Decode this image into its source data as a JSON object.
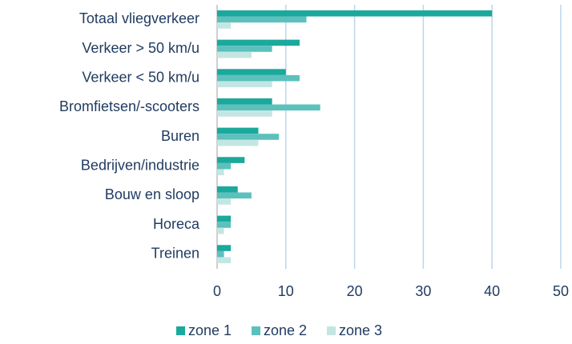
{
  "chart_data": {
    "type": "hbar",
    "categories": [
      "Totaal vliegverkeer",
      "Verkeer > 50 km/u",
      "Verkeer < 50 km/u",
      "Bromfietsen/-scooters",
      "Buren",
      "Bedrijven/industrie",
      "Bouw en sloop",
      "Horeca",
      "Treinen"
    ],
    "series": [
      {
        "name": "zone 1",
        "color": "#1aa99c",
        "values": [
          40,
          12,
          10,
          8,
          6,
          4,
          3,
          2,
          2
        ]
      },
      {
        "name": "zone 2",
        "color": "#5cc1bd",
        "values": [
          13,
          8,
          12,
          15,
          9,
          2,
          5,
          2,
          1
        ]
      },
      {
        "name": "zone 3",
        "color": "#c3e6e2",
        "values": [
          2,
          5,
          8,
          8,
          6,
          1,
          2,
          1,
          2
        ]
      }
    ],
    "xlim": [
      0,
      50
    ],
    "xticks": [
      0,
      10,
      20,
      30,
      40,
      50
    ],
    "grid": true,
    "legend": "bottom"
  }
}
